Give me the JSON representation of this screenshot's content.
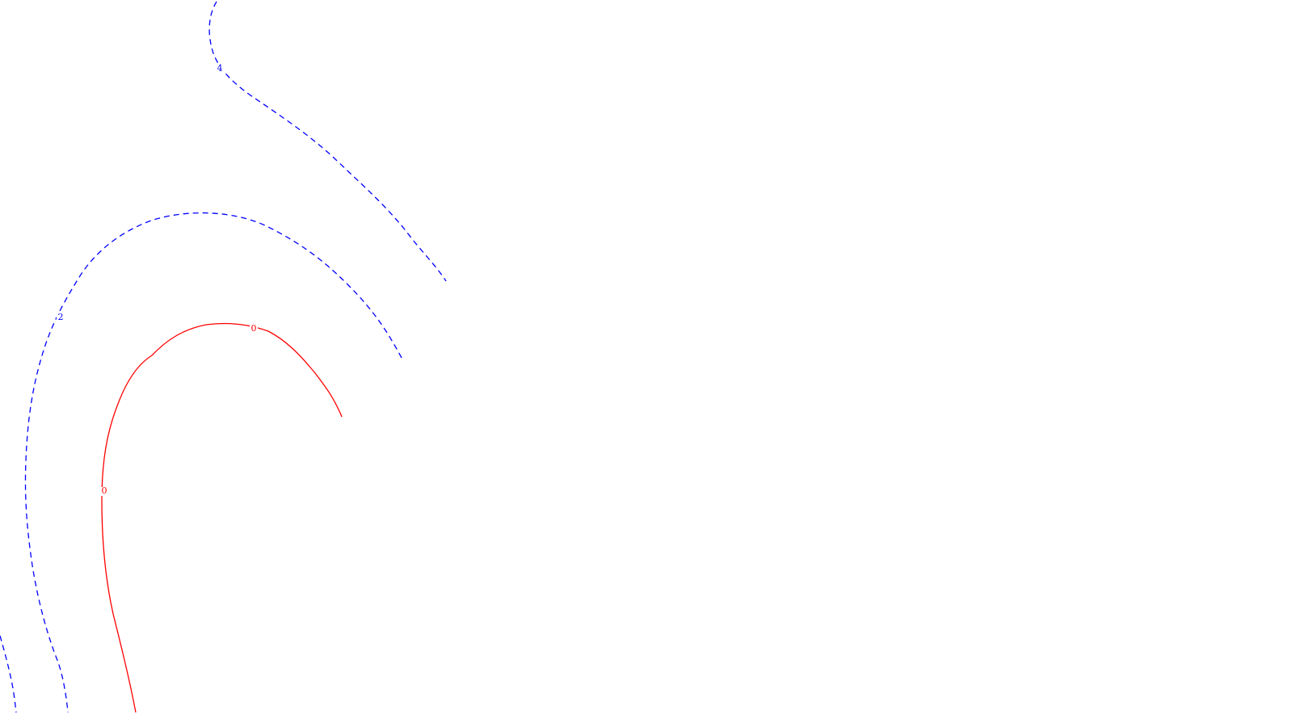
{
  "chart_data": {
    "type": "contour",
    "title": "",
    "xlabel": "",
    "ylabel": "",
    "grid": false,
    "legend": "none",
    "styles": {
      "negative_color": "#0000ff",
      "zero_color": "#ff0000",
      "negative_linestyle": "dashed",
      "zero_linestyle": "solid"
    },
    "levels": [
      {
        "value": 4,
        "label": "4",
        "linestyle": "dashed",
        "color": "#0000ff"
      },
      {
        "value": 2,
        "label": "2",
        "linestyle": "dashed",
        "color": "#0000ff"
      },
      {
        "value": 2,
        "label": "",
        "linestyle": "dashed",
        "color": "#0000ff"
      },
      {
        "value": 0,
        "label": "0",
        "linestyle": "solid",
        "color": "#ff0000"
      }
    ]
  }
}
